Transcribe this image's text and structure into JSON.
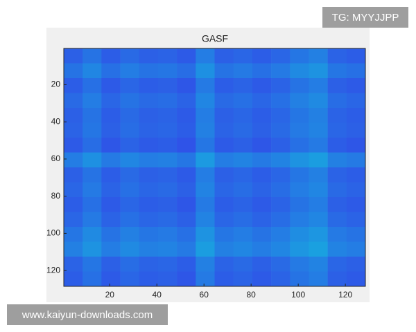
{
  "chart_data": {
    "type": "heatmap",
    "title": "GASF",
    "xlim": [
      0.5,
      128.5
    ],
    "ylim": [
      0.5,
      128.5
    ],
    "y_reversed": true,
    "xticks": [
      20,
      40,
      60,
      80,
      100,
      120
    ],
    "yticks": [
      20,
      40,
      60,
      80,
      100,
      120
    ],
    "clim": [
      0,
      1
    ],
    "colormap": [
      "#3e26a8",
      "#3050e8",
      "#1aa0e0",
      "#40d0b0",
      "#f9fb0e"
    ],
    "values": [
      [
        0.3,
        0.36,
        0.29,
        0.33,
        0.3,
        0.31,
        0.28,
        0.39,
        0.3,
        0.32,
        0.29,
        0.32,
        0.37,
        0.4,
        0.31,
        0.29
      ],
      [
        0.36,
        0.42,
        0.35,
        0.39,
        0.36,
        0.37,
        0.34,
        0.45,
        0.36,
        0.38,
        0.35,
        0.38,
        0.43,
        0.46,
        0.37,
        0.35
      ],
      [
        0.29,
        0.35,
        0.28,
        0.32,
        0.29,
        0.3,
        0.27,
        0.38,
        0.29,
        0.31,
        0.28,
        0.31,
        0.36,
        0.39,
        0.3,
        0.28
      ],
      [
        0.33,
        0.39,
        0.32,
        0.36,
        0.33,
        0.34,
        0.31,
        0.42,
        0.33,
        0.35,
        0.32,
        0.35,
        0.4,
        0.43,
        0.34,
        0.32
      ],
      [
        0.3,
        0.36,
        0.29,
        0.33,
        0.3,
        0.31,
        0.28,
        0.39,
        0.3,
        0.32,
        0.29,
        0.32,
        0.37,
        0.4,
        0.31,
        0.29
      ],
      [
        0.31,
        0.37,
        0.3,
        0.34,
        0.31,
        0.32,
        0.29,
        0.4,
        0.31,
        0.33,
        0.3,
        0.33,
        0.38,
        0.41,
        0.32,
        0.3
      ],
      [
        0.28,
        0.34,
        0.27,
        0.31,
        0.28,
        0.29,
        0.26,
        0.37,
        0.28,
        0.3,
        0.27,
        0.3,
        0.35,
        0.38,
        0.29,
        0.27
      ],
      [
        0.39,
        0.45,
        0.38,
        0.42,
        0.39,
        0.4,
        0.37,
        0.48,
        0.39,
        0.41,
        0.38,
        0.41,
        0.46,
        0.49,
        0.4,
        0.38
      ],
      [
        0.3,
        0.36,
        0.29,
        0.33,
        0.3,
        0.31,
        0.28,
        0.39,
        0.3,
        0.32,
        0.29,
        0.32,
        0.37,
        0.4,
        0.31,
        0.29
      ],
      [
        0.32,
        0.38,
        0.31,
        0.35,
        0.32,
        0.33,
        0.3,
        0.41,
        0.32,
        0.34,
        0.31,
        0.34,
        0.39,
        0.42,
        0.33,
        0.31
      ],
      [
        0.29,
        0.35,
        0.28,
        0.32,
        0.29,
        0.3,
        0.27,
        0.38,
        0.29,
        0.31,
        0.28,
        0.31,
        0.36,
        0.39,
        0.3,
        0.28
      ],
      [
        0.32,
        0.38,
        0.31,
        0.35,
        0.32,
        0.33,
        0.3,
        0.41,
        0.32,
        0.34,
        0.31,
        0.34,
        0.39,
        0.42,
        0.33,
        0.31
      ],
      [
        0.37,
        0.43,
        0.36,
        0.4,
        0.37,
        0.38,
        0.35,
        0.46,
        0.37,
        0.39,
        0.36,
        0.39,
        0.44,
        0.47,
        0.38,
        0.36
      ],
      [
        0.4,
        0.46,
        0.39,
        0.43,
        0.4,
        0.41,
        0.38,
        0.49,
        0.4,
        0.42,
        0.39,
        0.42,
        0.47,
        0.5,
        0.41,
        0.39
      ],
      [
        0.31,
        0.37,
        0.3,
        0.34,
        0.31,
        0.32,
        0.29,
        0.4,
        0.31,
        0.33,
        0.3,
        0.33,
        0.38,
        0.41,
        0.32,
        0.3
      ],
      [
        0.29,
        0.35,
        0.28,
        0.32,
        0.29,
        0.3,
        0.27,
        0.38,
        0.29,
        0.31,
        0.28,
        0.31,
        0.36,
        0.39,
        0.3,
        0.28
      ]
    ]
  },
  "watermarks": {
    "top": "TG: MYYJJPP",
    "bottom": "www.kaiyun-downloads.com"
  }
}
